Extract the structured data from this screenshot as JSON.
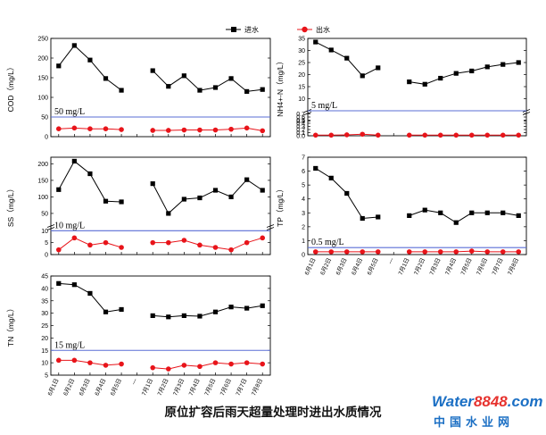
{
  "legend": {
    "inflow": "进水",
    "outflow": "出水",
    "inflow_color": "#000000",
    "outflow_color": "#e8141a"
  },
  "caption": "原位扩容后雨天超量处理时进出水质情况",
  "watermark": {
    "brand_prefix": "Water",
    "brand_number": "8848",
    "brand_suffix": ".com",
    "subtitle": "中国水业网"
  },
  "limit_line_color": "#5a6ed6",
  "chart_data": [
    {
      "id": "cod",
      "type": "line",
      "ylabel": "COD（mg/L）",
      "ylim": [
        0,
        250
      ],
      "yticks": [
        0,
        50,
        100,
        150,
        200,
        250
      ],
      "categories": [
        "6月1日",
        "6月2日",
        "6月3日",
        "6月4日",
        "6月5日",
        "—",
        "7月1日",
        "7月2日",
        "7月3日",
        "7月4日",
        "7月5日",
        "7月6日",
        "7月7日",
        "7月8日"
      ],
      "series": [
        {
          "name": "进水",
          "values": [
            180,
            232,
            195,
            148,
            118,
            null,
            168,
            128,
            155,
            118,
            125,
            148,
            115,
            120
          ]
        },
        {
          "name": "出水",
          "values": [
            20,
            22,
            20,
            20,
            18,
            null,
            16,
            16,
            17,
            17,
            17,
            19,
            22,
            15
          ]
        }
      ],
      "limit": {
        "value": 50,
        "label": "50 mg/L"
      }
    },
    {
      "id": "nh4",
      "type": "line",
      "ylabel": "NH4+-N（mg/L）",
      "ylim_upper": [
        5,
        35
      ],
      "yticks_upper": [
        10,
        15,
        20,
        25,
        30,
        35
      ],
      "ylim_lower": [
        0,
        0.8
      ],
      "yticks_lower": [
        0.0,
        0.1,
        0.2,
        0.3,
        0.4,
        0.5,
        0.6,
        0.7,
        0.8
      ],
      "categories": [
        "6月1日",
        "6月2日",
        "6月3日",
        "6月4日",
        "6月5日",
        "—",
        "7月1日",
        "7月2日",
        "7月3日",
        "7月4日",
        "7月5日",
        "7月6日",
        "7月7日",
        "7月8日"
      ],
      "series": [
        {
          "name": "进水",
          "values": [
            33.5,
            30.2,
            26.8,
            19.5,
            22.8,
            null,
            17.0,
            16.0,
            18.5,
            20.5,
            21.5,
            23.2,
            24.2,
            25.0
          ]
        },
        {
          "name": "出水",
          "values": [
            0.02,
            0.02,
            0.03,
            0.05,
            0.02,
            null,
            0.02,
            0.02,
            0.02,
            0.02,
            0.02,
            0.02,
            0.02,
            0.02
          ]
        }
      ],
      "limit": {
        "value": 5,
        "label": "5 mg/L"
      }
    },
    {
      "id": "ss",
      "type": "line",
      "ylabel": "SS（mg/L）",
      "ylim_upper": [
        12,
        220
      ],
      "yticks_upper": [
        50,
        100,
        150,
        200
      ],
      "ylim_lower": [
        0,
        12
      ],
      "yticks_lower": [
        0,
        5,
        10
      ],
      "categories": [
        "6月1日",
        "6月2日",
        "6月3日",
        "6月4日",
        "6月5日",
        "—",
        "7月1日",
        "7月2日",
        "7月3日",
        "7月4日",
        "7月5日",
        "7月6日",
        "7月7日",
        "7月8日"
      ],
      "series": [
        {
          "name": "进水",
          "values": [
            122,
            208,
            170,
            87,
            85,
            null,
            140,
            50,
            93,
            97,
            120,
            100,
            152,
            120
          ]
        },
        {
          "name": "出水",
          "values": [
            2,
            7,
            4,
            5,
            3,
            null,
            5,
            5,
            6,
            4,
            3,
            2,
            5,
            7
          ]
        }
      ],
      "limit": {
        "value": 10,
        "label": "10 mg/L"
      }
    },
    {
      "id": "tp",
      "type": "line",
      "ylabel": "TP（mg/L）",
      "ylim": [
        0,
        7
      ],
      "yticks": [
        0,
        1,
        2,
        3,
        4,
        5,
        6,
        7
      ],
      "categories": [
        "6月1日",
        "6月2日",
        "6月3日",
        "6月4日",
        "6月5日",
        "—",
        "7月1日",
        "7月2日",
        "7月3日",
        "7月4日",
        "7月5日",
        "7月6日",
        "7月7日",
        "7月8日"
      ],
      "series": [
        {
          "name": "进水",
          "values": [
            6.2,
            5.5,
            4.4,
            2.6,
            2.7,
            null,
            2.8,
            3.2,
            3.0,
            2.3,
            3.0,
            3.0,
            3.0,
            2.8
          ]
        },
        {
          "name": "出水",
          "values": [
            0.2,
            0.2,
            0.2,
            0.2,
            0.2,
            null,
            0.2,
            0.2,
            0.2,
            0.2,
            0.25,
            0.2,
            0.2,
            0.2
          ]
        }
      ],
      "limit": {
        "value": 0.5,
        "label": "0.5 mg/L"
      }
    },
    {
      "id": "tn",
      "type": "line",
      "ylabel": "TN（mg/L）",
      "ylim": [
        5,
        45
      ],
      "yticks": [
        5,
        10,
        15,
        20,
        25,
        30,
        35,
        40,
        45
      ],
      "categories": [
        "6月1日",
        "6月2日",
        "6月3日",
        "6月4日",
        "6月5日",
        "—",
        "7月1日",
        "7月2日",
        "7月3日",
        "7月4日",
        "7月5日",
        "7月6日",
        "7月7日",
        "7月8日"
      ],
      "series": [
        {
          "name": "进水",
          "values": [
            42,
            41.5,
            38,
            30.5,
            31.5,
            null,
            29,
            28.5,
            29,
            28.8,
            30.5,
            32.5,
            32,
            33
          ]
        },
        {
          "name": "出水",
          "values": [
            11,
            11,
            10,
            9,
            9.5,
            null,
            8,
            7.5,
            9,
            8.5,
            10,
            9.5,
            10,
            9.5
          ]
        }
      ],
      "limit": {
        "value": 15,
        "label": "15 mg/L"
      }
    }
  ]
}
